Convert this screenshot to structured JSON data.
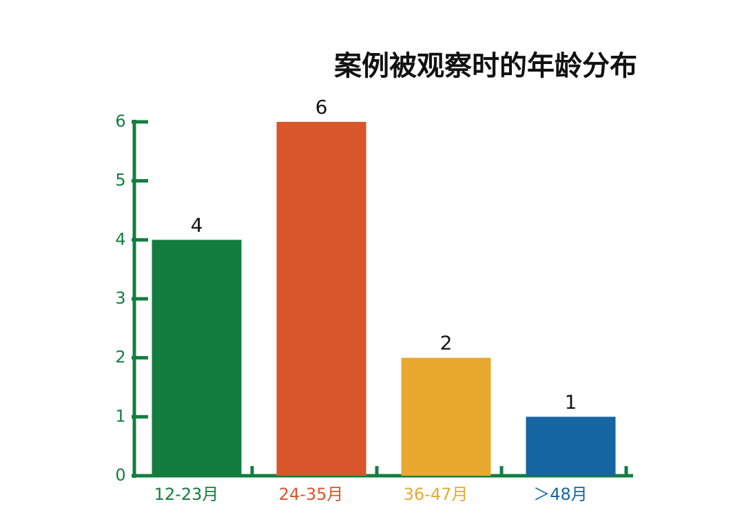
{
  "chart_data": {
    "type": "bar",
    "title": "案例被观察时的年龄分布",
    "categories": [
      "12-23月",
      "24-35月",
      "36-47月",
      "＞48月"
    ],
    "values": [
      4,
      6,
      2,
      1
    ],
    "colors": [
      "#137d3f",
      "#d9552a",
      "#e8a92e",
      "#1565a3"
    ],
    "axis_color": "#137d3f",
    "ylim": [
      0,
      6
    ],
    "yticks": [
      0,
      1,
      2,
      3,
      4,
      5,
      6
    ],
    "grid": false
  }
}
